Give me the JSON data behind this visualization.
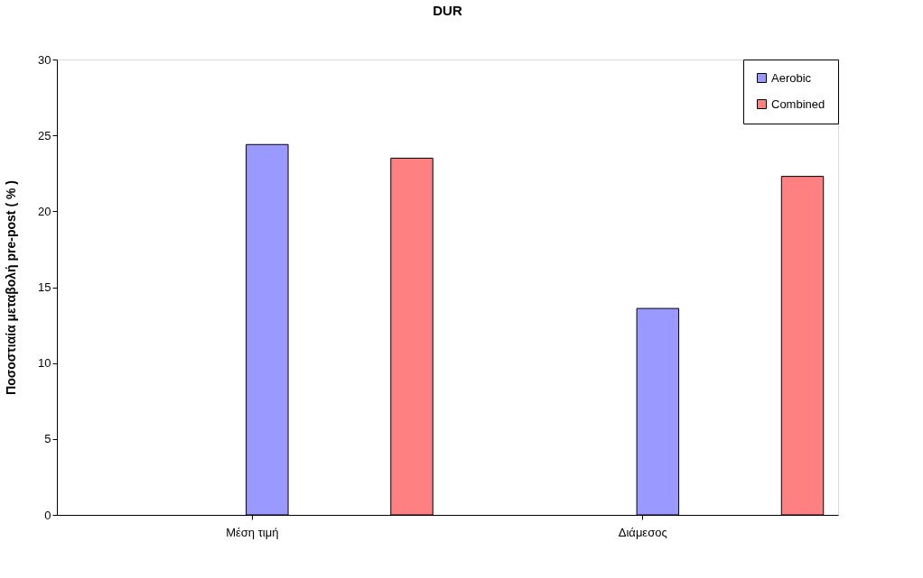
{
  "chart_data": {
    "type": "bar",
    "title": "DUR",
    "ylabel": "Ποσοστιαία μεταβολή pre-post ( % )",
    "categories": [
      "Μέση τιμή",
      "Διάμεσος"
    ],
    "series": [
      {
        "name": "Aerobic",
        "color": "#9999ff",
        "values": [
          24.4,
          13.6
        ]
      },
      {
        "name": "Combined",
        "color": "#ff8080",
        "values": [
          23.5,
          22.3
        ]
      }
    ],
    "ylim": [
      0,
      30
    ],
    "yticks": [
      0,
      5,
      10,
      15,
      20,
      25,
      30
    ],
    "grid": false,
    "legend": "top right"
  }
}
